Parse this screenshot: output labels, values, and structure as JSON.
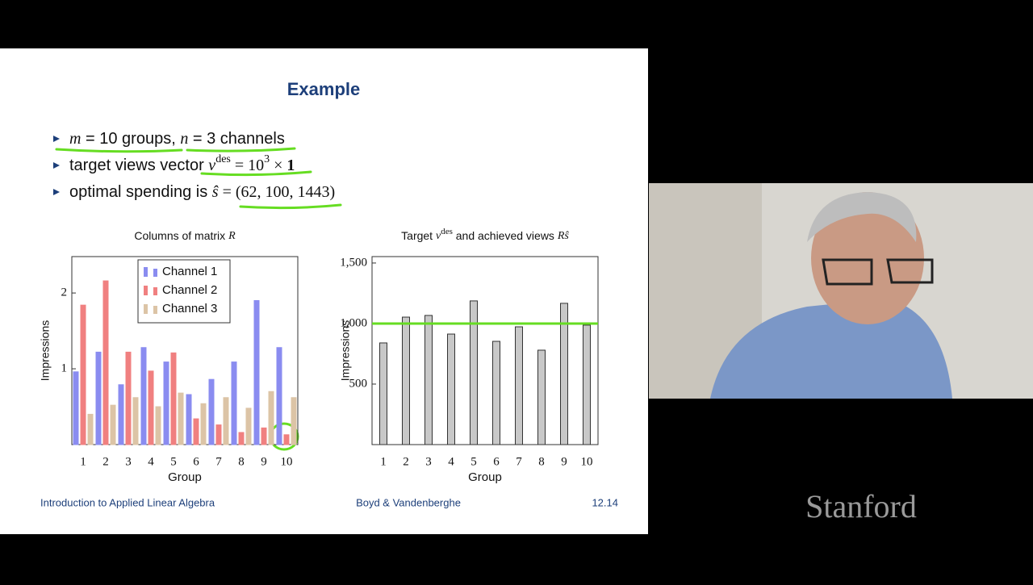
{
  "slide": {
    "title": "Example",
    "bullets": [
      [
        "m",
        " = 10 groups, ",
        "n",
        " = 3 channels"
      ],
      [
        "target views vector ",
        "v",
        "des",
        " = 10",
        "3",
        " × ",
        "1"
      ],
      [
        "optimal spending is ",
        "ŝ",
        " = (62, 100, 1443)"
      ]
    ],
    "footer": [
      "Introduction to Applied Linear Algebra",
      "Boyd & Vandenberghe",
      "12.14"
    ]
  },
  "watermark": "Stanford",
  "chart_data": [
    {
      "type": "bar",
      "title": [
        "Columns of matrix ",
        "R"
      ],
      "xlabel": "Group",
      "ylabel": "Impressions",
      "categories": [
        "1",
        "2",
        "3",
        "4",
        "5",
        "6",
        "7",
        "8",
        "9",
        "10"
      ],
      "series": [
        {
          "name": "Channel 1",
          "color": "#8a8cf0",
          "values": [
            0.96,
            1.22,
            0.79,
            1.28,
            1.09,
            0.66,
            0.86,
            1.09,
            1.9,
            1.28
          ]
        },
        {
          "name": "Channel 2",
          "color": "#f08080",
          "values": [
            1.84,
            2.16,
            1.22,
            0.97,
            1.21,
            0.34,
            0.26,
            0.16,
            0.22,
            0.13
          ]
        },
        {
          "name": "Channel 3",
          "color": "#dcc4a6",
          "values": [
            0.4,
            0.52,
            0.62,
            0.5,
            0.68,
            0.54,
            0.62,
            0.48,
            0.7,
            0.62
          ]
        }
      ],
      "ylim": [
        0,
        2.48
      ],
      "yticks": [
        1,
        2
      ],
      "legend": "top-right"
    },
    {
      "type": "bar",
      "title": [
        "Target ",
        "v",
        "des",
        " and achieved views ",
        "Rŝ"
      ],
      "xlabel": "Group",
      "ylabel": "Impressions",
      "categories": [
        "1",
        "2",
        "3",
        "4",
        "5",
        "6",
        "7",
        "8",
        "9",
        "10"
      ],
      "series": [
        {
          "color": "#c8c8c8",
          "values": [
            840,
            1053,
            1067,
            913,
            1187,
            853,
            973,
            780,
            1167,
            987
          ]
        }
      ],
      "target_line": {
        "value": 1000,
        "color": "#66dd22"
      },
      "ylim": [
        0,
        1553
      ],
      "yticks": [
        500,
        {
          "value": 1000,
          "label": "1,000"
        },
        {
          "value": 1500,
          "label": "1,500"
        }
      ]
    }
  ]
}
